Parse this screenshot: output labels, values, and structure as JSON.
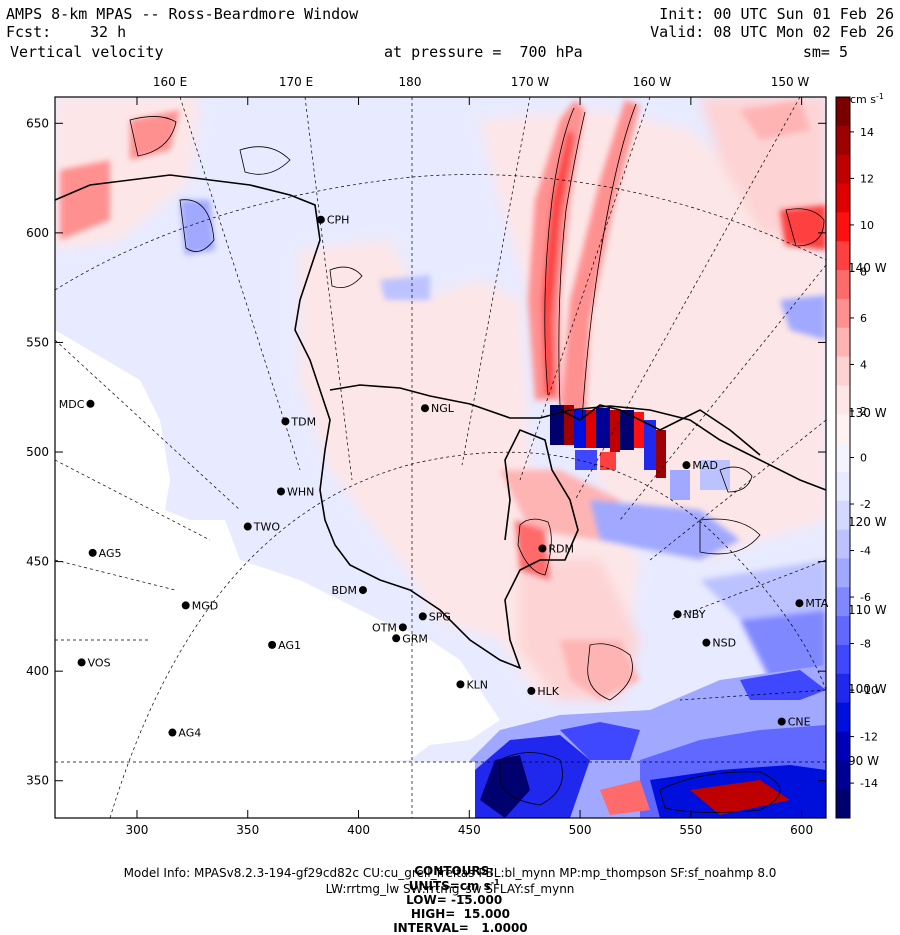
{
  "header": {
    "title": "AMPS 8-km MPAS -- Ross-Beardmore Window",
    "init": "Init: 00 UTC Sun 01 Feb 26",
    "fcst_label": "Fcst:",
    "fcst_value": "32 h",
    "valid": "Valid: 08 UTC Mon 02 Feb 26",
    "field": "Vertical velocity",
    "pressure": "at pressure =  700 hPa",
    "smooth": "sm= 5"
  },
  "longitude_labels": [
    "160 E",
    "170 E",
    "180",
    "170 W",
    "160 W",
    "150 W",
    "140 W",
    "130 W",
    "120 W",
    "110 W",
    "100 W",
    "90 W"
  ],
  "x_axis": {
    "ticks": [
      "300",
      "350",
      "400",
      "450",
      "500",
      "550",
      "600"
    ],
    "range": [
      263,
      611
    ]
  },
  "y_axis": {
    "ticks": [
      "650",
      "600",
      "550",
      "500",
      "450",
      "400",
      "350"
    ],
    "range": [
      333,
      662
    ]
  },
  "colorbar": {
    "units": "cm s",
    "units_exp": "-1",
    "ticks": [
      "14",
      "12",
      "10",
      "8",
      "6",
      "4",
      "2",
      "0",
      "-2",
      "-4",
      "-6",
      "-8",
      "-10",
      "-12",
      "-14"
    ],
    "colors": [
      "#7a0000",
      "#9c0000",
      "#be0000",
      "#de0000",
      "#ff1010",
      "#ff4040",
      "#ff6a6a",
      "#ff9090",
      "#ffb4b4",
      "#ffd2d2",
      "#ffe6e6",
      "#fff2f2",
      "#f4f4ff",
      "#e8eaff",
      "#d4d8ff",
      "#bcc2ff",
      "#a0a8ff",
      "#8088ff",
      "#6068ff",
      "#4048ff",
      "#2028ee",
      "#0010dc",
      "#0000b8",
      "#000094",
      "#00006e"
    ]
  },
  "stations": [
    {
      "name": "CPH",
      "x": 383,
      "y": 606
    },
    {
      "name": "NGL",
      "x": 430,
      "y": 520
    },
    {
      "name": "MDC",
      "x": 279,
      "y": 522
    },
    {
      "name": "TDM",
      "x": 367,
      "y": 514
    },
    {
      "name": "WHN",
      "x": 365,
      "y": 482
    },
    {
      "name": "TWO",
      "x": 350,
      "y": 466
    },
    {
      "name": "AG5",
      "x": 280,
      "y": 454
    },
    {
      "name": "BDM",
      "x": 402,
      "y": 437
    },
    {
      "name": "MGD",
      "x": 322,
      "y": 430
    },
    {
      "name": "SPG",
      "x": 429,
      "y": 425
    },
    {
      "name": "OTM",
      "x": 420,
      "y": 420
    },
    {
      "name": "GRM",
      "x": 417,
      "y": 415
    },
    {
      "name": "AG1",
      "x": 361,
      "y": 412
    },
    {
      "name": "VOS",
      "x": 275,
      "y": 404
    },
    {
      "name": "KLN",
      "x": 446,
      "y": 394
    },
    {
      "name": "HLK",
      "x": 478,
      "y": 391
    },
    {
      "name": "AG4",
      "x": 316,
      "y": 372
    },
    {
      "name": "RDM",
      "x": 483,
      "y": 456
    },
    {
      "name": "MAD",
      "x": 548,
      "y": 494
    },
    {
      "name": "NBY",
      "x": 544,
      "y": 426
    },
    {
      "name": "NSD",
      "x": 557,
      "y": 413
    },
    {
      "name": "MTA",
      "x": 599,
      "y": 431
    },
    {
      "name": "CNE",
      "x": 591,
      "y": 377
    }
  ],
  "footer": {
    "contours_label": "CONTOURS:",
    "units_label": "UNITS=cm s",
    "units_exp": "-1",
    "low": "LOW= -15.000",
    "high": "HIGH=  15.000",
    "interval": "INTERVAL=   1.0000",
    "model_info": "Model Info: MPASv8.2.3-194-gf29cd82c CU:cu_grell_freitas PBL:bl_mynn MP:mp_thompson SF:sf_noahmp 8.0",
    "model_info2": "LW:rrtmg_lw SW:rrtmg_sw SFLAY:sf_mynn"
  },
  "colors": {
    "frame": "#000000",
    "background": "#ffffff"
  }
}
